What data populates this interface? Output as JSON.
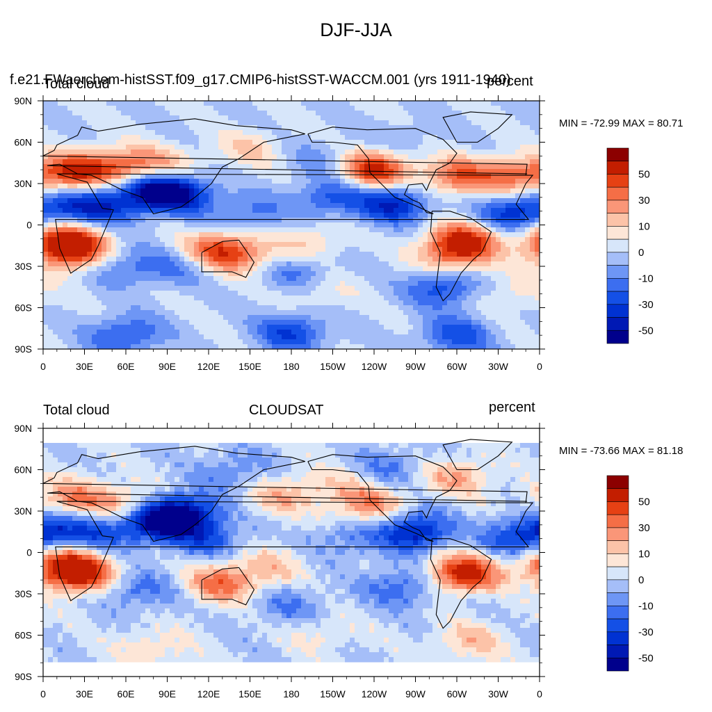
{
  "title": "DJF-JJA",
  "panels": [
    {
      "case_name": "f.e21.FWaerchem-histSST.f09_g17.CMIP6-histSST-WACCM.001 (yrs 1911-1940)",
      "left_label": "Total cloud",
      "right_label": "percent",
      "stats": "MIN = -72.99 MAX =  80.71",
      "fields": [
        {
          "lon": 80,
          "lat": 26,
          "v": -60
        },
        {
          "lon": 100,
          "lat": 22,
          "v": -45
        },
        {
          "lon": 45,
          "lat": 14,
          "v": -40
        },
        {
          "lon": 15,
          "lat": 12,
          "v": -35
        },
        {
          "lon": 20,
          "lat": 38,
          "v": 55
        },
        {
          "lon": 55,
          "lat": 42,
          "v": 45
        },
        {
          "lon": 85,
          "lat": 42,
          "v": 30
        },
        {
          "lon": 22,
          "lat": -18,
          "v": 70
        },
        {
          "lon": 10,
          "lat": -8,
          "v": 40
        },
        {
          "lon": 125,
          "lat": -18,
          "v": 45
        },
        {
          "lon": 145,
          "lat": -22,
          "v": 30
        },
        {
          "lon": 195,
          "lat": -12,
          "v": 20
        },
        {
          "lon": 240,
          "lat": 40,
          "v": 65
        },
        {
          "lon": 300,
          "lat": 35,
          "v": 45
        },
        {
          "lon": 340,
          "lat": 35,
          "v": 40
        },
        {
          "lon": 305,
          "lat": -12,
          "v": 65
        },
        {
          "lon": 295,
          "lat": -25,
          "v": 30
        },
        {
          "lon": 255,
          "lat": 15,
          "v": -50
        },
        {
          "lon": 340,
          "lat": 8,
          "v": -45
        },
        {
          "lon": 210,
          "lat": 20,
          "v": -35
        },
        {
          "lon": 150,
          "lat": 8,
          "v": -25
        },
        {
          "lon": 290,
          "lat": -45,
          "v": -40
        },
        {
          "lon": 185,
          "lat": -35,
          "v": -25
        },
        {
          "lon": 100,
          "lat": -30,
          "v": -20
        },
        {
          "lon": 60,
          "lat": -30,
          "v": -25
        },
        {
          "lon": 180,
          "lat": -78,
          "v": -40
        },
        {
          "lon": 60,
          "lat": -80,
          "v": -35
        },
        {
          "lon": 300,
          "lat": -80,
          "v": -35
        },
        {
          "lon": 200,
          "lat": 48,
          "v": -15
        },
        {
          "lon": 260,
          "lat": 62,
          "v": -10
        },
        {
          "lon": 150,
          "lat": 55,
          "v": 20
        },
        {
          "lon": 340,
          "lat": -50,
          "v": 15
        },
        {
          "lon": 200,
          "lat": -48,
          "v": 15
        }
      ]
    },
    {
      "case_name": "CLOUDSAT",
      "left_label": "Total cloud",
      "right_label": "percent",
      "stats": "MIN = -73.66 MAX =  81.18",
      "fields": [
        {
          "lon": 85,
          "lat": 22,
          "v": -65
        },
        {
          "lon": 105,
          "lat": 30,
          "v": -45
        },
        {
          "lon": 45,
          "lat": 15,
          "v": -30
        },
        {
          "lon": 10,
          "lat": 15,
          "v": -35
        },
        {
          "lon": 20,
          "lat": 40,
          "v": 35
        },
        {
          "lon": 55,
          "lat": 35,
          "v": 30
        },
        {
          "lon": 25,
          "lat": -15,
          "v": 75
        },
        {
          "lon": 8,
          "lat": -5,
          "v": 35
        },
        {
          "lon": 130,
          "lat": -22,
          "v": 45
        },
        {
          "lon": 165,
          "lat": -10,
          "v": 20
        },
        {
          "lon": 305,
          "lat": -15,
          "v": 70
        },
        {
          "lon": 270,
          "lat": 15,
          "v": -55
        },
        {
          "lon": 345,
          "lat": 10,
          "v": -40
        },
        {
          "lon": 120,
          "lat": 10,
          "v": -30
        },
        {
          "lon": 220,
          "lat": 10,
          "v": -20
        },
        {
          "lon": 235,
          "lat": 35,
          "v": 40
        },
        {
          "lon": 300,
          "lat": 55,
          "v": 30
        },
        {
          "lon": 170,
          "lat": 40,
          "v": 25
        },
        {
          "lon": 205,
          "lat": 50,
          "v": 15
        },
        {
          "lon": 260,
          "lat": -25,
          "v": -30
        },
        {
          "lon": 70,
          "lat": -28,
          "v": -25
        },
        {
          "lon": 180,
          "lat": -40,
          "v": -20
        },
        {
          "lon": 200,
          "lat": -58,
          "v": 15
        },
        {
          "lon": 310,
          "lat": -65,
          "v": 25
        },
        {
          "lon": 80,
          "lat": -70,
          "v": 20
        },
        {
          "lon": 250,
          "lat": 62,
          "v": -20
        },
        {
          "lon": 140,
          "lat": 60,
          "v": -20
        }
      ]
    }
  ],
  "x_ticks": [
    "0",
    "30E",
    "60E",
    "90E",
    "120E",
    "150E",
    "180",
    "150W",
    "120W",
    "90W",
    "60W",
    "30W",
    "0"
  ],
  "y_ticks": [
    "90N",
    "60N",
    "30N",
    "0",
    "30S",
    "60S",
    "90S"
  ],
  "colorbar": {
    "labels": [
      "50",
      "30",
      "10",
      "0",
      "-10",
      "-30",
      "-50"
    ],
    "levels": [
      -60,
      -50,
      -40,
      -30,
      -20,
      -10,
      0,
      10,
      20,
      30,
      40,
      50,
      60
    ],
    "colors": [
      "#00008c",
      "#0019b4",
      "#0032d2",
      "#1450e6",
      "#3c6ef0",
      "#6e96f5",
      "#a5bef8",
      "#d7e6fa",
      "#fde6d7",
      "#fcc3a8",
      "#fa9678",
      "#f56e46",
      "#e64114",
      "#c31e00",
      "#8c0000"
    ]
  },
  "coastline_color": "#000000"
}
